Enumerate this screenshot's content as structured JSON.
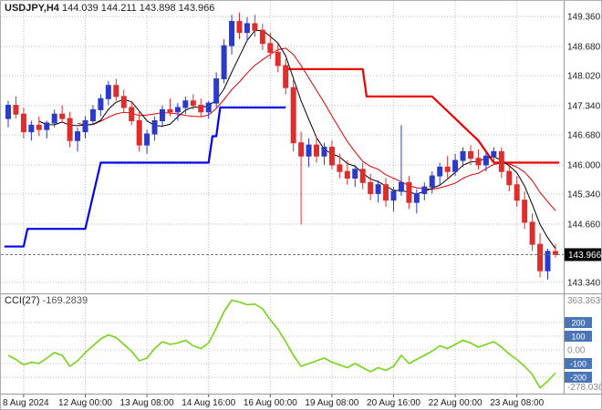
{
  "header": {
    "symbol_period": "USDJPY,H4",
    "ohlc": "144.039 144.211 143.898 143.966"
  },
  "indicator": {
    "label": "CCI(27)",
    "value": "-169.2839"
  },
  "colors": {
    "background": "#ffffff",
    "grid": "#bdbdbd",
    "separator": "#9a9a9a",
    "bull": "#2b3ac9",
    "bear": "#dd2e2e",
    "stop_blue": "#0000ee",
    "stop_red": "#ee0000",
    "ma_black": "#000000",
    "ma_red": "#dd0000",
    "cci_line": "#76d319",
    "axis_text": "#1b1b1b",
    "range_text": "#8a8a8a",
    "bid_line": "#777777",
    "price_badge_bg": "#000000",
    "price_badge_fg": "#ffffff",
    "level_badge_bg": "#4a76b8",
    "level_badge_fg": "#ffffff"
  },
  "chart_data": {
    "type": "candlestick",
    "title": "USDJPY,H4",
    "legend_position": "top-left",
    "grid": true,
    "ylim": [
      143.15,
      149.55
    ],
    "current_price": 143.966,
    "current_price_label": "143.966",
    "price_ticks": [
      {
        "v": 149.36,
        "label": "149.360"
      },
      {
        "v": 148.68,
        "label": "148.680"
      },
      {
        "v": 148.02,
        "label": "148.020"
      },
      {
        "v": 147.34,
        "label": "147.340"
      },
      {
        "v": 146.68,
        "label": "146.680"
      },
      {
        "v": 146.0,
        "label": "146.000"
      },
      {
        "v": 145.34,
        "label": "145.340"
      },
      {
        "v": 144.66,
        "label": "144.660"
      },
      {
        "v": 143.34,
        "label": "143.340"
      }
    ],
    "time_ticks": [
      {
        "label": "8 Aug 2024",
        "i": 2
      },
      {
        "label": "12 Aug 00:00",
        "i": 10
      },
      {
        "label": "13 Aug 08:00",
        "i": 18
      },
      {
        "label": "14 Aug 16:00",
        "i": 26
      },
      {
        "label": "16 Aug 00:00",
        "i": 34
      },
      {
        "label": "19 Aug 08:00",
        "i": 42
      },
      {
        "label": "20 Aug 16:00",
        "i": 50
      },
      {
        "label": "22 Aug 00:00",
        "i": 58
      },
      {
        "label": "23 Aug 08:00",
        "i": 66
      }
    ],
    "candles_ohlc": [
      [
        147.05,
        147.45,
        146.85,
        147.35
      ],
      [
        147.35,
        147.55,
        147.05,
        147.15
      ],
      [
        147.15,
        147.3,
        146.6,
        146.75
      ],
      [
        146.75,
        147.0,
        146.55,
        146.9
      ],
      [
        146.9,
        147.1,
        146.65,
        146.8
      ],
      [
        146.8,
        147.0,
        146.6,
        146.95
      ],
      [
        146.95,
        147.25,
        146.85,
        147.15
      ],
      [
        147.15,
        147.35,
        146.95,
        147.05
      ],
      [
        147.05,
        147.2,
        146.4,
        146.55
      ],
      [
        146.55,
        146.85,
        146.3,
        146.75
      ],
      [
        146.75,
        147.1,
        146.6,
        147.0
      ],
      [
        147.0,
        147.35,
        146.9,
        147.25
      ],
      [
        147.25,
        147.6,
        147.1,
        147.5
      ],
      [
        147.5,
        147.9,
        147.35,
        147.8
      ],
      [
        147.8,
        147.95,
        147.45,
        147.55
      ],
      [
        147.55,
        147.7,
        147.2,
        147.3
      ],
      [
        147.3,
        147.45,
        146.9,
        147.0
      ],
      [
        147.0,
        147.2,
        146.3,
        146.45
      ],
      [
        146.45,
        146.8,
        146.25,
        146.7
      ],
      [
        146.7,
        147.1,
        146.55,
        147.0
      ],
      [
        147.0,
        147.35,
        146.85,
        147.25
      ],
      [
        147.25,
        147.5,
        147.1,
        147.2
      ],
      [
        147.2,
        147.4,
        147.0,
        147.3
      ],
      [
        147.3,
        147.55,
        147.15,
        147.45
      ],
      [
        147.45,
        147.6,
        147.25,
        147.35
      ],
      [
        147.35,
        147.5,
        147.1,
        147.2
      ],
      [
        147.2,
        147.45,
        147.05,
        147.4
      ],
      [
        147.4,
        148.1,
        147.3,
        147.95
      ],
      [
        147.95,
        148.85,
        147.85,
        148.7
      ],
      [
        148.7,
        149.4,
        148.5,
        149.25
      ],
      [
        149.25,
        149.45,
        148.85,
        149.0
      ],
      [
        149.0,
        149.35,
        148.8,
        149.2
      ],
      [
        149.2,
        149.4,
        148.9,
        149.05
      ],
      [
        149.05,
        149.2,
        148.6,
        148.75
      ],
      [
        148.75,
        149.0,
        148.4,
        148.55
      ],
      [
        148.55,
        148.75,
        148.1,
        148.25
      ],
      [
        148.25,
        148.4,
        147.6,
        147.75
      ],
      [
        147.75,
        147.95,
        146.3,
        146.5
      ],
      [
        146.5,
        146.75,
        144.65,
        146.2
      ],
      [
        146.2,
        146.6,
        145.95,
        146.45
      ],
      [
        146.45,
        146.65,
        146.05,
        146.2
      ],
      [
        146.2,
        146.5,
        146.0,
        146.4
      ],
      [
        146.4,
        146.55,
        145.9,
        146.0
      ],
      [
        146.0,
        146.25,
        145.7,
        145.85
      ],
      [
        145.85,
        146.1,
        145.55,
        145.7
      ],
      [
        145.7,
        146.0,
        145.5,
        145.9
      ],
      [
        145.9,
        146.05,
        145.45,
        145.6
      ],
      [
        145.6,
        145.8,
        145.2,
        145.35
      ],
      [
        145.35,
        145.65,
        145.15,
        145.55
      ],
      [
        145.55,
        145.7,
        145.05,
        145.2
      ],
      [
        145.2,
        145.5,
        144.95,
        145.4
      ],
      [
        145.4,
        146.9,
        145.3,
        145.6
      ],
      [
        145.6,
        145.75,
        145.0,
        145.15
      ],
      [
        145.15,
        145.45,
        144.9,
        145.35
      ],
      [
        145.35,
        145.6,
        145.2,
        145.5
      ],
      [
        145.5,
        145.85,
        145.35,
        145.75
      ],
      [
        145.75,
        146.05,
        145.55,
        145.95
      ],
      [
        145.95,
        146.2,
        145.7,
        145.85
      ],
      [
        145.85,
        146.25,
        145.75,
        146.1
      ],
      [
        146.1,
        146.4,
        145.95,
        146.3
      ],
      [
        146.3,
        146.45,
        146.0,
        146.15
      ],
      [
        146.15,
        146.35,
        145.9,
        146.0
      ],
      [
        146.0,
        146.3,
        145.85,
        146.2
      ],
      [
        146.2,
        146.4,
        146.05,
        146.3
      ],
      [
        146.3,
        146.4,
        145.7,
        145.85
      ],
      [
        145.85,
        146.05,
        145.4,
        145.55
      ],
      [
        145.55,
        145.75,
        145.05,
        145.2
      ],
      [
        145.2,
        145.4,
        144.55,
        144.7
      ],
      [
        144.7,
        144.9,
        144.05,
        144.2
      ],
      [
        144.2,
        144.45,
        143.45,
        143.6
      ],
      [
        143.6,
        144.1,
        143.4,
        144.04
      ],
      [
        144.039,
        144.211,
        143.898,
        143.966
      ]
    ],
    "overlays": {
      "stop_blue_points": [
        [
          -0.5,
          144.15
        ],
        [
          2,
          144.15
        ],
        [
          2.5,
          144.55
        ],
        [
          10,
          144.55
        ],
        [
          12,
          146.05
        ],
        [
          26,
          146.05
        ],
        [
          26.5,
          146.65
        ],
        [
          27,
          146.65
        ],
        [
          27.5,
          147.3
        ],
        [
          36,
          147.3
        ]
      ],
      "stop_red_points": [
        [
          36,
          148.17
        ],
        [
          46,
          148.17
        ],
        [
          46.5,
          147.55
        ],
        [
          55,
          147.55
        ],
        [
          56.5,
          147.3
        ],
        [
          61,
          146.55
        ],
        [
          63,
          146.05
        ],
        [
          71.5,
          146.05
        ]
      ],
      "ma_fast_period": 5,
      "ma_slow_period": 10
    },
    "cci": {
      "name": "CCI(27)",
      "current": -169.2839,
      "ylim": [
        -300,
        380
      ],
      "levels": [
        200,
        100,
        -100,
        -200
      ],
      "level_labels": [
        "200",
        "100",
        "-100",
        "-200"
      ],
      "zero_label": "0.00",
      "range_max_label": "363.3639",
      "range_min_label": "-278.036",
      "range_max": 363.3639,
      "range_min": -278.036,
      "values": [
        -40,
        -70,
        -110,
        -90,
        -100,
        -60,
        -20,
        -40,
        -120,
        -80,
        -20,
        30,
        80,
        110,
        90,
        40,
        -10,
        -80,
        -60,
        10,
        60,
        40,
        50,
        70,
        30,
        10,
        50,
        160,
        280,
        363.36,
        350,
        330,
        335,
        300,
        220,
        150,
        60,
        -40,
        -120,
        -100,
        -80,
        -60,
        -90,
        -110,
        -130,
        -100,
        -130,
        -160,
        -130,
        -150,
        -120,
        -40,
        -100,
        -70,
        -40,
        -10,
        30,
        10,
        40,
        70,
        50,
        20,
        40,
        60,
        20,
        -30,
        -70,
        -120,
        -180,
        -278.04,
        -230,
        -169.28
      ]
    }
  }
}
